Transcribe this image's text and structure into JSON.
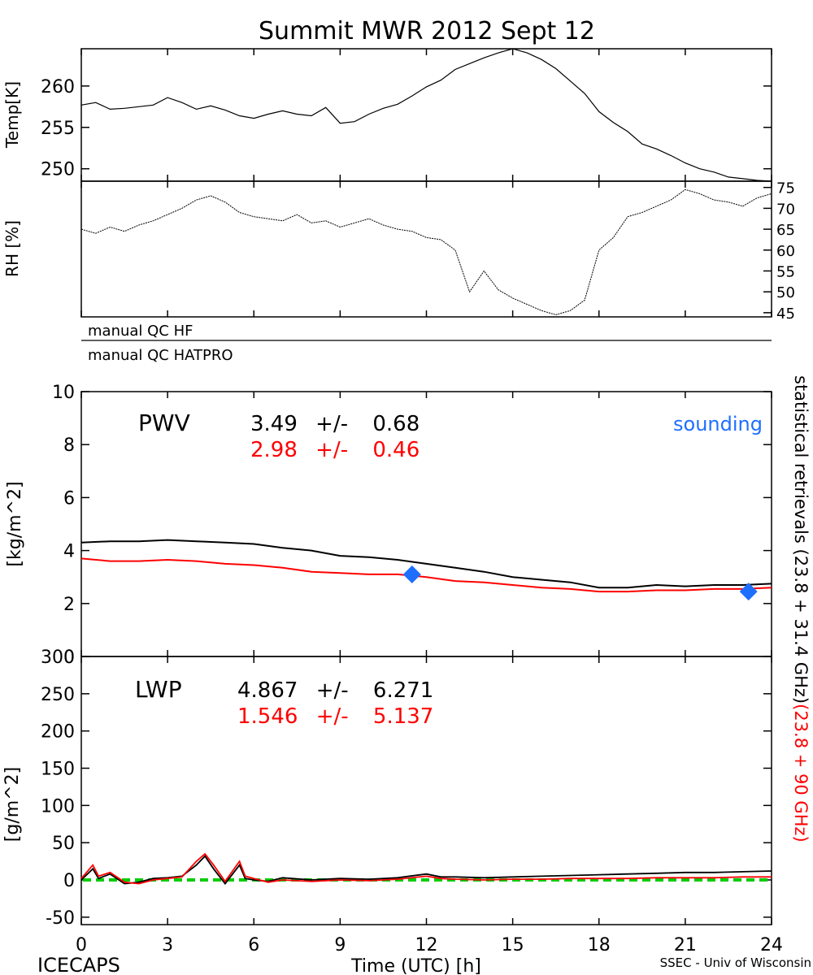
{
  "title": "Summit MWR 2012 Sept 12",
  "footer": {
    "left": "ICECAPS",
    "center": "Time (UTC) [h]",
    "right": "SSEC - Univ of Wisconsin"
  },
  "x_ticks": [
    "0",
    "3",
    "6",
    "9",
    "12",
    "15",
    "18",
    "21",
    "24"
  ],
  "side_label": {
    "black": "statistical retrievals (23.8 + 31.4 GHz)",
    "red": "(23.8 + 90 GHz)"
  },
  "qc": {
    "row1": "manual QC HF",
    "row2": "manual QC HATPRO"
  },
  "colors": {
    "black": "#000000",
    "red": "#ff0000",
    "blue": "#1f6fff",
    "green": "#00cc00"
  },
  "chart_data": [
    {
      "type": "line",
      "panel": "temperature",
      "ylabel": "Temp[K]",
      "xlim": [
        0,
        24
      ],
      "ylim": [
        248.5,
        264.5
      ],
      "yticks": [
        "250",
        "255",
        "260"
      ],
      "series": [
        {
          "color": "#000000",
          "x": [
            0,
            0.5,
            1,
            1.5,
            2,
            2.5,
            3,
            3.5,
            4,
            4.5,
            5,
            5.5,
            6,
            6.5,
            7,
            7.5,
            8,
            8.5,
            9,
            9.5,
            10,
            10.5,
            11,
            11.5,
            12,
            12.5,
            13,
            13.5,
            14,
            14.5,
            15,
            15.5,
            16,
            16.5,
            17,
            17.5,
            18,
            18.5,
            19,
            19.5,
            20,
            20.5,
            21,
            21.5,
            22,
            22.5,
            23,
            23.5,
            24
          ],
          "y": [
            257.7,
            258.0,
            257.2,
            257.3,
            257.5,
            257.7,
            258.6,
            258.0,
            257.2,
            257.6,
            257.1,
            256.4,
            256.1,
            256.6,
            257.0,
            256.6,
            256.4,
            257.4,
            255.5,
            255.7,
            256.6,
            257.3,
            257.8,
            258.8,
            259.9,
            260.7,
            262.0,
            262.7,
            263.4,
            264.0,
            264.5,
            264.0,
            263.2,
            262.1,
            260.6,
            259.1,
            256.9,
            255.6,
            254.5,
            253.0,
            252.4,
            251.6,
            250.7,
            250.0,
            249.6,
            249.0,
            248.8,
            248.6,
            248.5
          ]
        }
      ]
    },
    {
      "type": "line",
      "panel": "relative-humidity",
      "ylabel": "RH [%]",
      "xlim": [
        0,
        24
      ],
      "ylim": [
        44,
        76.5
      ],
      "yticks": [
        "45",
        "50",
        "55",
        "60",
        "65",
        "70",
        "75"
      ],
      "series": [
        {
          "color": "#000000",
          "x": [
            0,
            0.5,
            1,
            1.5,
            2,
            2.5,
            3,
            3.5,
            4,
            4.5,
            5,
            5.5,
            6,
            6.5,
            7,
            7.5,
            8,
            8.5,
            9,
            9.5,
            10,
            10.5,
            11,
            11.5,
            12,
            12.5,
            13,
            13.5,
            14,
            14.5,
            15,
            15.5,
            16,
            16.5,
            17,
            17.5,
            18,
            18.5,
            19,
            19.5,
            20,
            20.5,
            21,
            21.5,
            22,
            22.5,
            23,
            23.5,
            24
          ],
          "y": [
            65.0,
            64.0,
            65.5,
            64.5,
            66.0,
            67.0,
            68.5,
            70.0,
            72.0,
            73.0,
            71.5,
            69.0,
            68.0,
            67.5,
            67.0,
            68.5,
            66.5,
            67.0,
            65.5,
            66.5,
            67.5,
            66.0,
            65.0,
            64.5,
            63.0,
            62.5,
            60.0,
            50.0,
            55.0,
            50.5,
            48.5,
            47.0,
            45.5,
            44.5,
            45.5,
            48.0,
            60.0,
            63.0,
            68.0,
            69.0,
            70.5,
            72.0,
            74.5,
            73.5,
            72.0,
            71.5,
            70.5,
            72.5,
            73.5
          ]
        }
      ]
    },
    {
      "type": "line",
      "panel": "pwv",
      "ylabel": "[kg/m^2]",
      "xlim": [
        0,
        24
      ],
      "ylim": [
        0,
        10
      ],
      "yticks": [
        "0",
        "2",
        "4",
        "6",
        "8",
        "10"
      ],
      "annotation_label": "PWV",
      "stats": [
        {
          "color": "#000000",
          "mean": "3.49",
          "pm": "+/-",
          "sd": "0.68"
        },
        {
          "color": "#ff0000",
          "mean": "2.98",
          "pm": "+/-",
          "sd": "0.46"
        }
      ],
      "legend_sounding": "sounding",
      "series": [
        {
          "color": "#000000",
          "x": [
            0,
            1,
            2,
            3,
            4,
            5,
            6,
            7,
            8,
            9,
            10,
            11,
            12,
            13,
            14,
            15,
            16,
            17,
            18,
            19,
            20,
            21,
            22,
            23,
            24
          ],
          "y": [
            4.3,
            4.35,
            4.35,
            4.4,
            4.35,
            4.3,
            4.25,
            4.1,
            4.0,
            3.8,
            3.75,
            3.65,
            3.5,
            3.35,
            3.2,
            3.0,
            2.9,
            2.8,
            2.6,
            2.6,
            2.7,
            2.65,
            2.7,
            2.7,
            2.75
          ]
        },
        {
          "color": "#ff0000",
          "x": [
            0,
            1,
            2,
            3,
            4,
            5,
            6,
            7,
            8,
            9,
            10,
            11,
            12,
            13,
            14,
            15,
            16,
            17,
            18,
            19,
            20,
            21,
            22,
            23,
            24
          ],
          "y": [
            3.7,
            3.6,
            3.6,
            3.65,
            3.6,
            3.5,
            3.45,
            3.35,
            3.2,
            3.15,
            3.1,
            3.1,
            3.0,
            2.85,
            2.8,
            2.7,
            2.6,
            2.55,
            2.45,
            2.45,
            2.5,
            2.5,
            2.55,
            2.55,
            2.6
          ]
        }
      ],
      "soundings": [
        {
          "x": 11.5,
          "y": 3.1
        },
        {
          "x": 23.2,
          "y": 2.45
        }
      ]
    },
    {
      "type": "line",
      "panel": "lwp",
      "ylabel": "[g/m^2]",
      "xlim": [
        0,
        24
      ],
      "ylim": [
        -60,
        300
      ],
      "yticks": [
        "-50",
        "0",
        "50",
        "100",
        "150",
        "200",
        "250",
        "300"
      ],
      "annotation_label": "LWP",
      "stats": [
        {
          "color": "#000000",
          "mean": "4.867",
          "pm": "+/-",
          "sd": "6.271"
        },
        {
          "color": "#ff0000",
          "mean": "1.546",
          "pm": "+/-",
          "sd": "5.137"
        }
      ],
      "zero_line": {
        "color": "#00cc00",
        "y": 0
      },
      "series": [
        {
          "color": "#000000",
          "x": [
            0,
            0.4,
            0.6,
            1,
            1.5,
            2,
            2.5,
            3,
            3.5,
            4,
            4.3,
            4.6,
            5,
            5.5,
            5.7,
            6,
            6.5,
            7,
            8,
            9,
            10,
            11,
            12,
            12.5,
            13,
            14,
            15,
            16,
            17,
            18,
            19,
            20,
            21,
            22,
            23,
            24
          ],
          "y": [
            0,
            15,
            2,
            8,
            -5,
            -3,
            2,
            3,
            5,
            20,
            32,
            15,
            -5,
            20,
            2,
            0,
            -2,
            3,
            0,
            2,
            1,
            3,
            8,
            4,
            4,
            3,
            4,
            5,
            6,
            7,
            8,
            9,
            10,
            10,
            11,
            12
          ]
        },
        {
          "color": "#ff0000",
          "x": [
            0,
            0.4,
            0.6,
            1,
            1.5,
            2,
            2.5,
            3,
            3.5,
            4,
            4.3,
            4.6,
            5,
            5.5,
            5.7,
            6,
            6.5,
            7,
            8,
            9,
            10,
            11,
            12,
            12.5,
            13,
            14,
            15,
            16,
            17,
            18,
            19,
            20,
            21,
            22,
            23,
            24
          ],
          "y": [
            2,
            20,
            5,
            10,
            -3,
            -5,
            0,
            2,
            4,
            25,
            35,
            20,
            -2,
            25,
            5,
            2,
            -3,
            0,
            -2,
            0,
            -1,
            1,
            5,
            2,
            1,
            0,
            1,
            1,
            2,
            2,
            2,
            3,
            3,
            3,
            4,
            4
          ]
        }
      ]
    }
  ]
}
